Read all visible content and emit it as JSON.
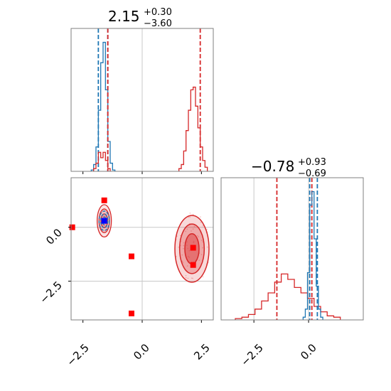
{
  "chart_data": [
    {
      "type": "histogram",
      "panel": "marginal-param-1",
      "title": {
        "value": "2.15",
        "upper": "+0.30",
        "lower": "−3.60"
      },
      "xlim": [
        -3.0,
        3.0
      ],
      "grid": true,
      "series": [
        {
          "color": "#1f77b4",
          "bins": [
            [
              -2.1,
              0.01
            ],
            [
              -2.0,
              0.05
            ],
            [
              -1.9,
              0.18
            ],
            [
              -1.8,
              0.45
            ],
            [
              -1.7,
              0.8
            ],
            [
              -1.6,
              0.95
            ],
            [
              -1.5,
              0.6
            ],
            [
              -1.4,
              0.22
            ],
            [
              -1.3,
              0.06
            ],
            [
              -1.2,
              0.01
            ]
          ],
          "quantile_lines": [
            -1.85,
            -1.45
          ]
        },
        {
          "color": "#d62728",
          "bins": [
            [
              -2.0,
              0.02
            ],
            [
              -1.9,
              0.06
            ],
            [
              -1.8,
              0.14
            ],
            [
              -1.7,
              0.1
            ],
            [
              -1.6,
              0.14
            ],
            [
              -1.5,
              0.08
            ],
            [
              -1.4,
              0.02
            ],
            [
              1.6,
              0.02
            ],
            [
              1.7,
              0.05
            ],
            [
              1.8,
              0.15
            ],
            [
              1.9,
              0.3
            ],
            [
              2.0,
              0.45
            ],
            [
              2.1,
              0.6
            ],
            [
              2.2,
              0.62
            ],
            [
              2.3,
              0.48
            ],
            [
              2.4,
              0.32
            ],
            [
              2.5,
              0.18
            ],
            [
              2.6,
              0.08
            ],
            [
              2.7,
              0.03
            ]
          ],
          "quantile_lines": [
            -1.45,
            2.45
          ]
        }
      ]
    },
    {
      "type": "scatter",
      "panel": "joint",
      "xlim": [
        -3.0,
        3.0
      ],
      "ylim": [
        -4.3,
        2.3
      ],
      "x_ticks": [
        "−2.5",
        "0.0",
        "2.5"
      ],
      "y_ticks": [
        "0.0",
        "−2.5"
      ],
      "grid": true,
      "markers": {
        "color": "#ff0000",
        "points": [
          [
            -2.95,
            0.0
          ],
          [
            -1.6,
            1.25
          ],
          [
            -0.45,
            -1.35
          ],
          [
            -0.45,
            -4.0
          ],
          [
            2.15,
            -0.95
          ],
          [
            2.15,
            -1.75
          ]
        ]
      },
      "blue_marker": {
        "color": "#0000ff",
        "point": [
          -1.6,
          0.3
        ]
      },
      "red_contours": {
        "center": [
          2.1,
          -1.0
        ],
        "levels": 3
      },
      "blue_contours": {
        "center": [
          -1.6,
          0.3
        ],
        "levels": 3
      }
    },
    {
      "type": "histogram",
      "panel": "marginal-param-2",
      "title": {
        "value": "−0.78",
        "upper": "+0.93",
        "lower": "−0.69"
      },
      "xlim": [
        -4.0,
        2.5
      ],
      "x_ticks": [
        "−2.5",
        "0.0"
      ],
      "grid": true,
      "series": [
        {
          "color": "#1f77b4",
          "bins": [
            [
              -0.2,
              0.02
            ],
            [
              -0.1,
              0.08
            ],
            [
              0.0,
              0.35
            ],
            [
              0.1,
              0.85
            ],
            [
              0.2,
              0.95
            ],
            [
              0.3,
              0.6
            ],
            [
              0.4,
              0.25
            ],
            [
              0.5,
              0.08
            ],
            [
              0.6,
              0.02
            ]
          ],
          "quantile_lines": [
            0.05,
            0.4
          ]
        },
        {
          "color": "#d62728",
          "bins": [
            [
              -3.2,
              0.01
            ],
            [
              -2.9,
              0.02
            ],
            [
              -2.6,
              0.04
            ],
            [
              -2.3,
              0.08
            ],
            [
              -2.0,
              0.14
            ],
            [
              -1.7,
              0.2
            ],
            [
              -1.4,
              0.28
            ],
            [
              -1.1,
              0.34
            ],
            [
              -0.8,
              0.3
            ],
            [
              -0.5,
              0.24
            ],
            [
              -0.2,
              0.2
            ],
            [
              0.1,
              0.16
            ],
            [
              0.4,
              0.1
            ],
            [
              0.7,
              0.06
            ],
            [
              1.0,
              0.03
            ],
            [
              1.3,
              0.02
            ]
          ],
          "quantile_lines": [
            -1.45,
            0.15
          ]
        }
      ]
    }
  ]
}
